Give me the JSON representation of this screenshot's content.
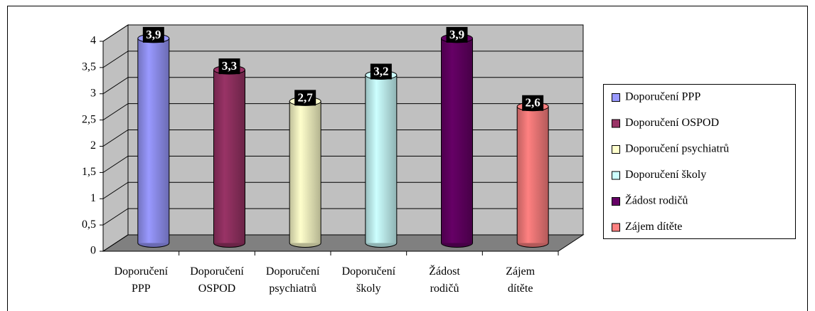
{
  "chart_data": {
    "type": "bar3d",
    "categories": [
      "Doporučení PPP",
      "Doporučení OSPOD",
      "Doporučení psychiatrů",
      "Doporučení školy",
      "Žádost rodičů",
      "Zájem dítěte"
    ],
    "values": [
      3.9,
      3.3,
      2.7,
      3.2,
      3.9,
      2.6
    ],
    "value_labels": [
      "3,9",
      "3,3",
      "2,7",
      "3,2",
      "3,9",
      "2,6"
    ],
    "colors": [
      "#9999ff",
      "#993366",
      "#ffffcc",
      "#ccffff",
      "#660066",
      "#ff8080"
    ],
    "ylim": [
      0,
      4
    ],
    "yticks": [
      0,
      {
        "value": 0.5,
        "label": "0,5"
      },
      1,
      {
        "value": 1.5,
        "label": "1,5"
      },
      2,
      {
        "value": 2.5,
        "label": "2,5"
      },
      3,
      {
        "value": 3.5,
        "label": "3,5"
      },
      4
    ],
    "grid": true,
    "legend": "right"
  }
}
